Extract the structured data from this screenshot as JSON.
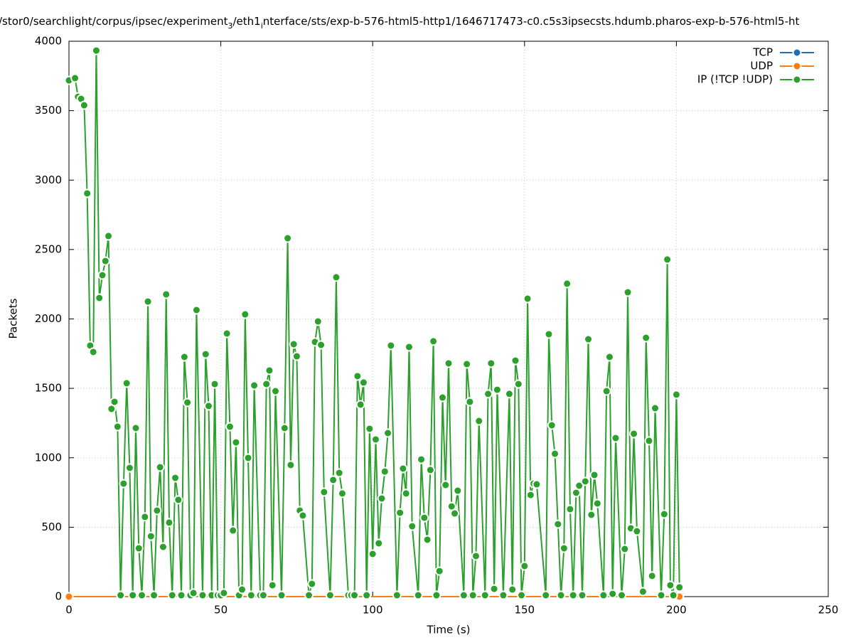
{
  "chart_data": {
    "type": "line",
    "title": [
      "/stor0/searchlight/corpus/ipsec/experiment",
      "3",
      "/eth1",
      "i",
      "nterface/sts/exp-b-576-html5-http1/1646717473-c0.c5s3ipsecsts.hdumb.pharos-exp-b-576-html5-ht"
    ],
    "xlabel": "Time (s)",
    "ylabel": "Packets",
    "xlim": [
      0,
      250
    ],
    "ylim": [
      0,
      4000
    ],
    "xticks": [
      0,
      50,
      100,
      150,
      200,
      250
    ],
    "yticks": [
      0,
      500,
      1000,
      1500,
      2000,
      2500,
      3000,
      3500,
      4000
    ],
    "grid": true,
    "legend": "top right",
    "series": [
      {
        "name": "TCP",
        "color": "#1f6fb4",
        "x": [
          0,
          201
        ],
        "values": [
          0,
          0
        ]
      },
      {
        "name": "UDP",
        "color": "#ff7f0e",
        "x": [
          0,
          201
        ],
        "values": [
          0,
          0
        ]
      },
      {
        "name": "IP (!TCP  !UDP)",
        "color": "#2ca02c",
        "x": [
          0,
          2,
          3,
          4,
          5,
          6,
          7,
          8,
          9,
          10,
          11,
          12,
          13,
          14,
          15,
          16,
          17,
          18,
          19,
          20,
          21,
          22,
          23,
          24,
          25,
          26,
          27,
          28,
          29,
          30,
          31,
          32,
          33,
          34,
          35,
          36,
          37,
          38,
          39,
          40,
          41,
          42,
          44,
          45,
          46,
          47,
          48,
          49,
          50,
          51,
          52,
          53,
          54,
          55,
          56,
          57,
          58,
          59,
          60,
          61,
          63,
          64,
          65,
          66,
          67,
          68,
          70,
          71,
          72,
          73,
          74,
          75,
          76,
          77,
          79,
          80,
          81,
          82,
          83,
          84,
          86,
          87,
          88,
          89,
          90,
          92,
          93,
          94,
          95,
          96,
          97,
          98,
          99,
          100,
          101,
          102,
          103,
          104,
          105,
          106,
          108,
          109,
          110,
          111,
          112,
          113,
          115,
          116,
          117,
          118,
          119,
          120,
          121,
          122,
          123,
          124,
          125,
          126,
          127,
          128,
          130,
          131,
          132,
          133,
          134,
          135,
          137,
          138,
          139,
          140,
          141,
          143,
          145,
          146,
          147,
          148,
          149,
          150,
          151,
          152,
          153,
          154,
          157,
          158,
          159,
          160,
          161,
          162,
          163,
          164,
          165,
          166,
          167,
          168,
          169,
          170,
          171,
          172,
          173,
          174,
          176,
          177,
          178,
          179,
          180,
          182,
          183,
          184,
          185,
          186,
          187,
          189,
          190,
          191,
          192,
          193,
          195,
          196,
          197,
          198,
          199,
          200,
          201
        ],
        "values": [
          3718,
          3734,
          3600,
          3585,
          3539,
          2904,
          1808,
          1762,
          3933,
          2151,
          2315,
          2417,
          2597,
          1352,
          1403,
          1224,
          10,
          814,
          1537,
          927,
          10,
          1214,
          348,
          10,
          574,
          2125,
          435,
          10,
          620,
          932,
          358,
          2177,
          533,
          10,
          855,
          697,
          10,
          1726,
          1398,
          10,
          26,
          2064,
          10,
          1746,
          1373,
          10,
          1531,
          10,
          10,
          26,
          1895,
          1224,
          476,
          1111,
          10,
          51,
          2033,
          999,
          10,
          1521,
          10,
          10,
          1531,
          1629,
          82,
          1480,
          10,
          1214,
          2581,
          948,
          1818,
          1731,
          620,
          584,
          10,
          92,
          1834,
          1982,
          1813,
          753,
          10,
          840,
          2300,
          891,
          743,
          10,
          10,
          10,
          1588,
          1383,
          1542,
          10,
          1209,
          307,
          1132,
          384,
          707,
          901,
          1178,
          1808,
          10,
          604,
          922,
          743,
          1798,
          507,
          10,
          988,
          568,
          410,
          912,
          1839,
          10,
          184,
          1434,
          804,
          1680,
          650,
          599,
          763,
          10,
          1675,
          1403,
          10,
          292,
          1265,
          10,
          1460,
          1680,
          56,
          1490,
          10,
          1460,
          51,
          1700,
          1531,
          10,
          220,
          2146,
          732,
          814,
          809,
          10,
          1890,
          1234,
          1029,
          522,
          10,
          348,
          2254,
          630,
          10,
          748,
          799,
          10,
          830,
          1854,
          589,
          876,
          671,
          10,
          1480,
          1726,
          20,
          1142,
          10,
          343,
          2192,
          492,
          1173,
          471,
          36,
          1864,
          1122,
          149,
          1357,
          10,
          594,
          2428,
          82,
          10,
          1455,
          67
        ]
      }
    ]
  }
}
